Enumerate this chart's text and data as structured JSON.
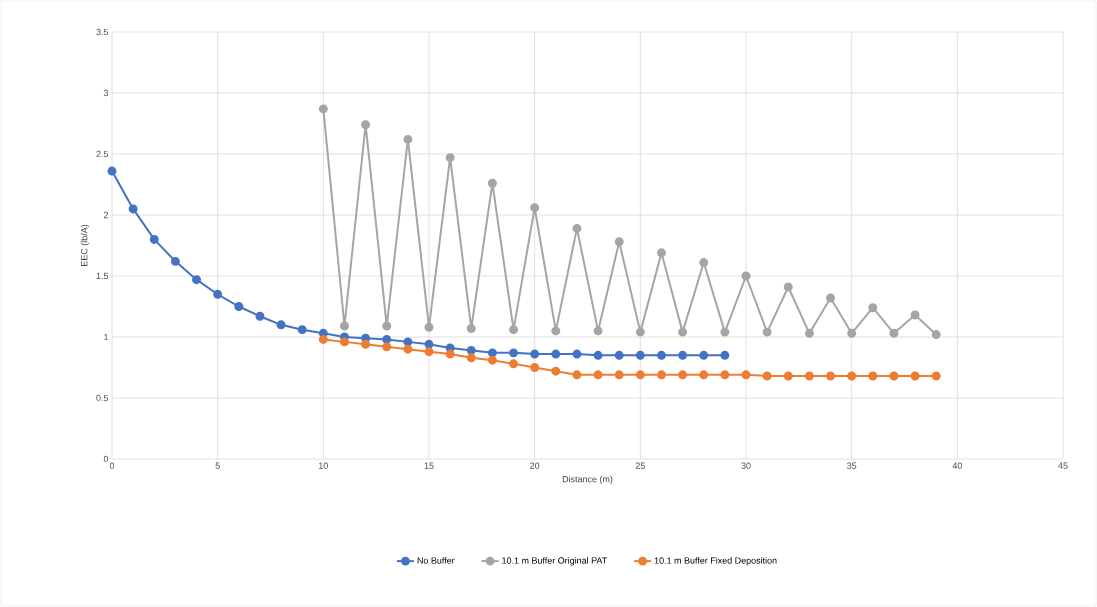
{
  "chart_data": {
    "type": "line",
    "xlabel": "Distance (m)",
    "ylabel": "EEC (lb/A)",
    "x": [
      0,
      1,
      2,
      3,
      4,
      5,
      6,
      7,
      8,
      9,
      10,
      11,
      12,
      13,
      14,
      15,
      16,
      17,
      18,
      19,
      20,
      21,
      22,
      23,
      24,
      25,
      26,
      27,
      28,
      29
    ],
    "series": [
      {
        "name": "No Buffer",
        "color": "#4472c4",
        "values": [
          2.36,
          2.05,
          1.8,
          1.62,
          1.47,
          1.35,
          1.25,
          1.17,
          1.1,
          1.06,
          1.03,
          1.0,
          0.99,
          0.98,
          0.96,
          0.94,
          0.91,
          0.89,
          0.87,
          0.87,
          0.86,
          0.86,
          0.86,
          0.85,
          0.85,
          0.85,
          0.85,
          0.85,
          0.85,
          0.85
        ]
      },
      {
        "name": "10.1 m Buffer Original PAT",
        "color": "#a5a5a5",
        "x": [
          10,
          11,
          12,
          13,
          14,
          15,
          16,
          17,
          18,
          19,
          20,
          21,
          22,
          23,
          24,
          25,
          26,
          27,
          28,
          29,
          30,
          31,
          32,
          33,
          34,
          35,
          36,
          37,
          38,
          39
        ],
        "values": [
          2.87,
          1.09,
          2.74,
          1.09,
          2.62,
          1.08,
          2.47,
          1.07,
          2.26,
          1.06,
          2.06,
          1.05,
          1.89,
          1.05,
          1.78,
          1.04,
          1.69,
          1.04,
          1.61,
          1.04,
          1.5,
          1.04,
          1.41,
          1.03,
          1.32,
          1.03,
          1.24,
          1.03,
          1.18,
          1.02
        ]
      },
      {
        "name": "10.1 m Buffer Fixed Deposition",
        "color": "#ed7d31",
        "x": [
          10,
          11,
          12,
          13,
          14,
          15,
          16,
          17,
          18,
          19,
          20,
          21,
          22,
          23,
          24,
          25,
          26,
          27,
          28,
          29,
          30,
          31,
          32,
          33,
          34,
          35,
          36,
          37,
          38,
          39
        ],
        "values": [
          0.98,
          0.96,
          0.94,
          0.92,
          0.9,
          0.88,
          0.86,
          0.83,
          0.81,
          0.78,
          0.75,
          0.72,
          0.69,
          0.69,
          0.69,
          0.69,
          0.69,
          0.69,
          0.69,
          0.69,
          0.69,
          0.68,
          0.68,
          0.68,
          0.68,
          0.68,
          0.68,
          0.68,
          0.68,
          0.68
        ]
      }
    ],
    "xlim": [
      0,
      45
    ],
    "xticks": [
      0,
      5,
      10,
      15,
      20,
      25,
      30,
      35,
      40,
      45
    ],
    "ylim": [
      0,
      3.5
    ],
    "yticks": [
      0,
      0.5,
      1,
      1.5,
      2,
      2.5,
      3,
      3.5
    ],
    "grid": true,
    "legend": "bottom",
    "marker": "circle",
    "line_style": "solid"
  }
}
